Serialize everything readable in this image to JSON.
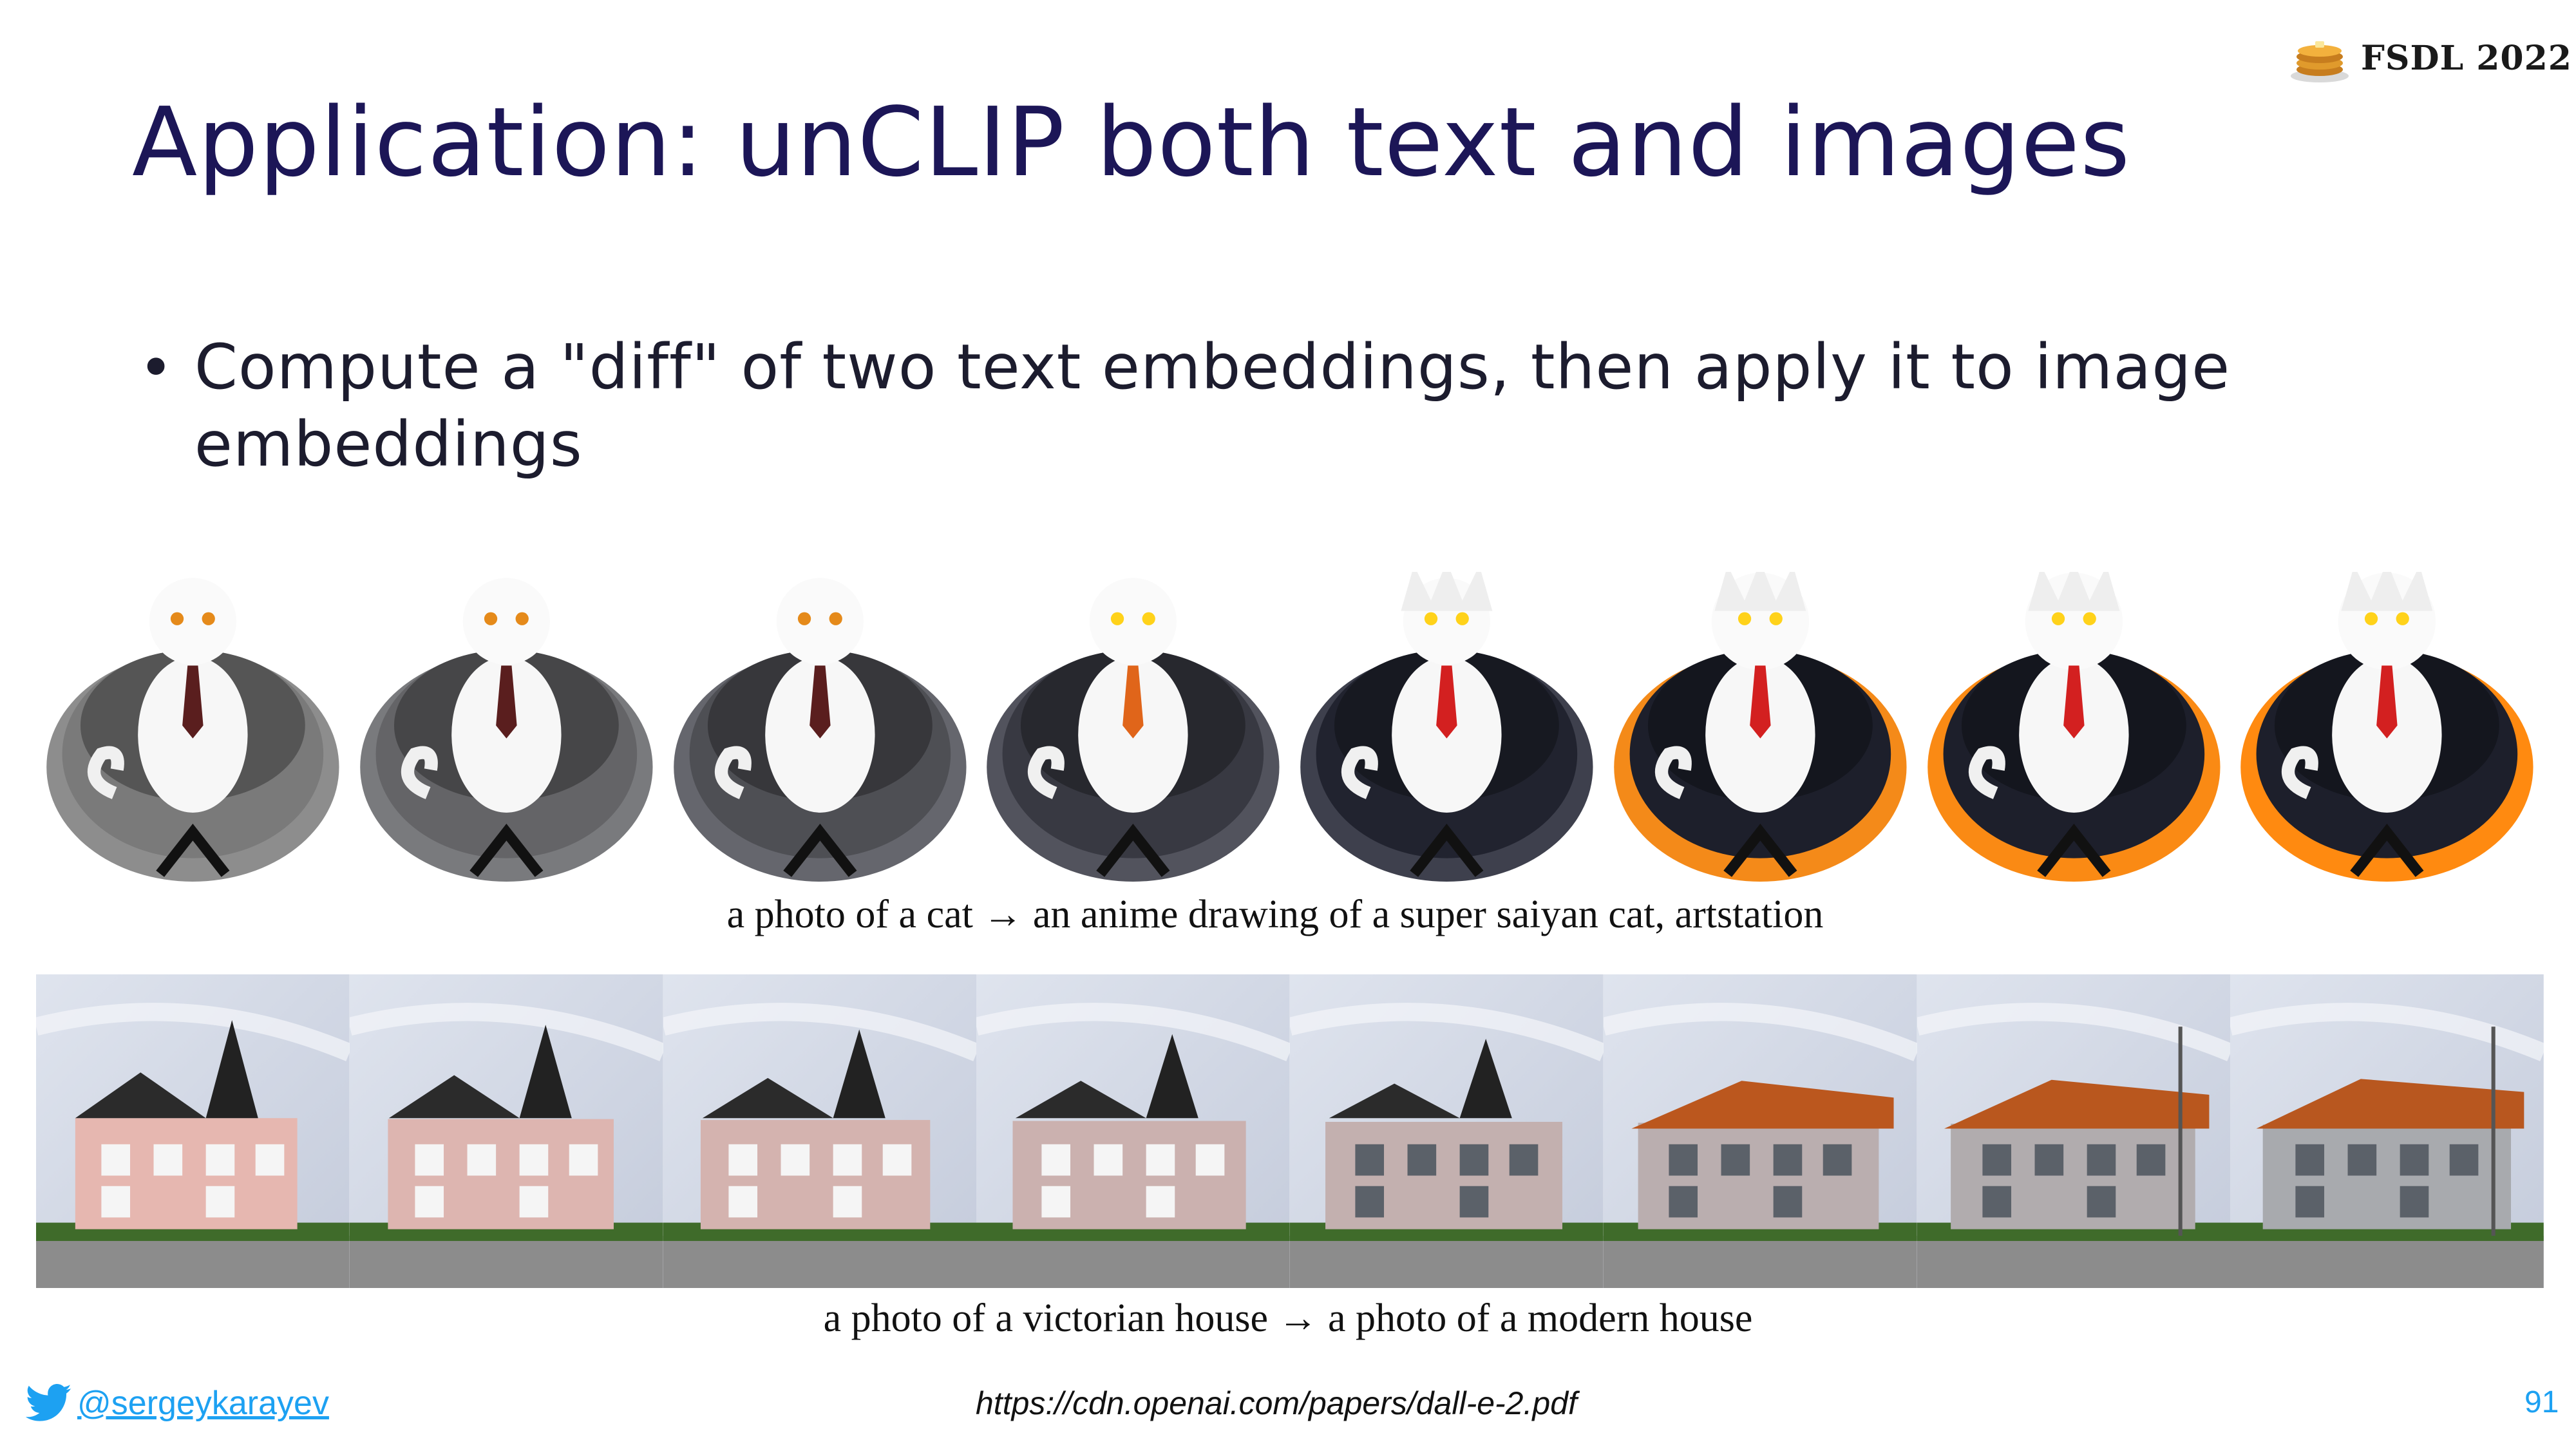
{
  "slide": {
    "title": "Application: unCLIP both text and images",
    "page_number": "91"
  },
  "header": {
    "logo_icon": "pancake-stack-icon",
    "logo_text": "FSDL 2022"
  },
  "bullets": [
    {
      "text": "Compute a \"diff\" of two text embeddings, then apply it to image embeddings"
    }
  ],
  "figures": {
    "cat_strip": {
      "caption": "a photo of a cat → an anime drawing of a super saiyan cat, artstation",
      "frames": 8
    },
    "house_strip": {
      "caption": "a photo of a victorian house → a photo of a modern house",
      "frames": 8
    }
  },
  "footer": {
    "twitter_icon": "twitter-bird-icon",
    "twitter_handle": "@sergeykarayev",
    "source_url": "https://cdn.openai.com/papers/dall-e-2.pdf"
  },
  "colors": {
    "title": "#1c1657",
    "link": "#1da1f2",
    "chair_gray": "#6f6f6f",
    "chair_orange": "#f08a1c"
  }
}
